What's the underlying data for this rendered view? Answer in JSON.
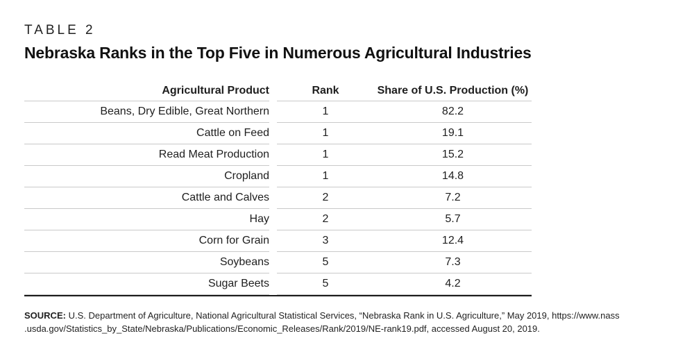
{
  "page": {
    "kicker": "TABLE 2",
    "title": "Nebraska Ranks in the Top Five in Numerous Agricultural Industries"
  },
  "table": {
    "columns": {
      "product": "Agricultural Product",
      "rank": "Rank",
      "share": "Share of U.S. Production (%)"
    },
    "rows": [
      {
        "product": "Beans, Dry Edible, Great Northern",
        "rank": "1",
        "share": "82.2"
      },
      {
        "product": "Cattle on Feed",
        "rank": "1",
        "share": "19.1"
      },
      {
        "product": "Read Meat Production",
        "rank": "1",
        "share": "15.2"
      },
      {
        "product": "Cropland",
        "rank": "1",
        "share": "14.8"
      },
      {
        "product": "Cattle and Calves",
        "rank": "2",
        "share": "7.2"
      },
      {
        "product": "Hay",
        "rank": "2",
        "share": "5.7"
      },
      {
        "product": "Corn for Grain",
        "rank": "3",
        "share": "12.4"
      },
      {
        "product": "Soybeans",
        "rank": "5",
        "share": "7.3"
      },
      {
        "product": "Sugar Beets",
        "rank": "5",
        "share": "4.2"
      }
    ]
  },
  "source": {
    "label": "SOURCE:",
    "line1": "U.S. Department of Agriculture, National Agricultural Statistical Services, “Nebraska Rank in U.S. Agriculture,” May 2019, https://www.nass",
    "line2": ".usda.gov/Statistics_by_State/Nebraska/Publications/Economic_Releases/Rank/2019/NE-rank19.pdf, accessed August 20, 2019."
  },
  "colors": {
    "background": "#ffffff",
    "text": "#1e1e1e",
    "rule_light": "#c9c9c9",
    "rule_heavy": "#1a1a1a"
  }
}
